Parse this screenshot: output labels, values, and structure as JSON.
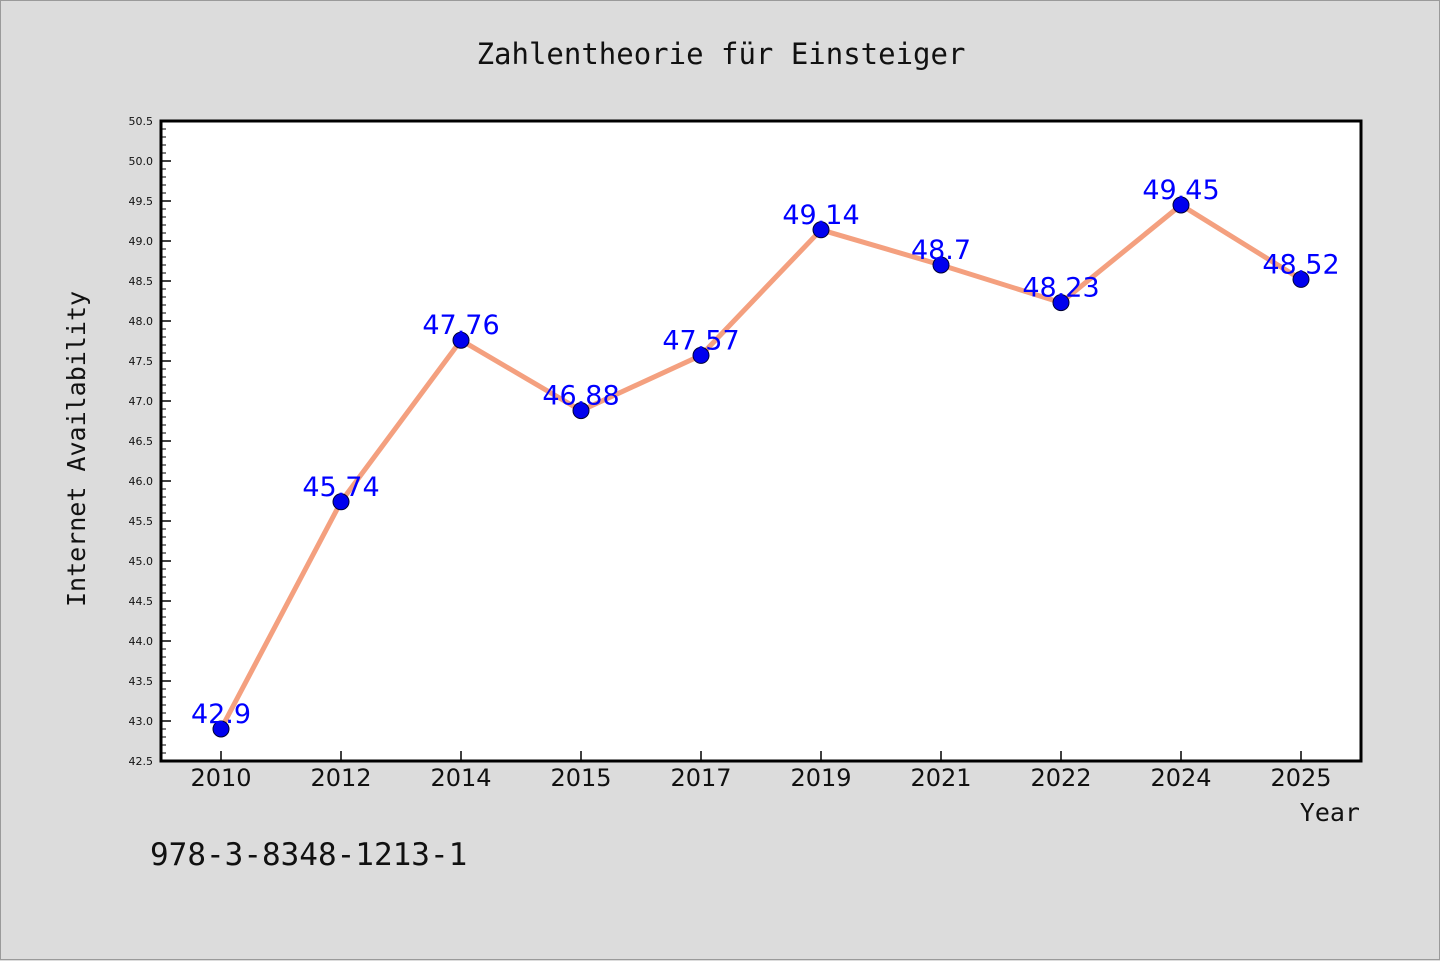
{
  "chart_data": {
    "type": "line",
    "title": "Zahlentheorie für Einsteiger",
    "xlabel": "Year",
    "ylabel": "Internet Availability",
    "categories": [
      "2010",
      "2012",
      "2014",
      "2015",
      "2017",
      "2019",
      "2021",
      "2022",
      "2024",
      "2025"
    ],
    "series": [
      {
        "values": [
          42.9,
          45.74,
          47.76,
          46.88,
          47.57,
          49.14,
          48.7,
          48.23,
          49.45,
          48.52
        ],
        "labels": [
          "42.9",
          "45.74",
          "47.76",
          "46.88",
          "47.57",
          "49.14",
          "48.7",
          "48.23",
          "49.45",
          "48.52"
        ],
        "line_color": "#f4a07f",
        "marker_color": "#0000ee",
        "label_color": "#0000ff"
      }
    ],
    "yticks": [
      "42.5",
      "43.0",
      "43.5",
      "44.0",
      "44.5",
      "45.0",
      "45.5",
      "46.0",
      "46.5",
      "47.0",
      "47.5",
      "48.0",
      "48.5",
      "49.0",
      "49.5",
      "50.0",
      "50.5"
    ],
    "ylim": [
      42.5,
      50.5
    ],
    "grid": false,
    "legend": "none"
  },
  "isbn": "978-3-8348-1213-1"
}
